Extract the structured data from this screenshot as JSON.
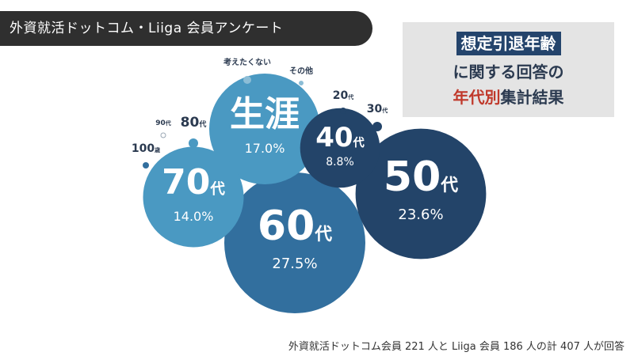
{
  "header": {
    "title": "外資就活ドットコム・Liiga 会員アンケート"
  },
  "heading": {
    "line1": "想定引退年齢",
    "line2": "に関する回答の",
    "line3_accent": "年代別",
    "line3_rest": "集計結果"
  },
  "footnote": "外資就活ドットコム会員 221 人と Liiga 会員 186 人の計 407 人が回答",
  "colors": {
    "dark": "#234469",
    "mid": "#326f9e",
    "light": "#4a99c2",
    "accent": "#c0392b"
  },
  "chart_data": {
    "type": "bubble",
    "unit": "%",
    "items": [
      {
        "label": "60",
        "suffix": "代",
        "value": 27.5,
        "value_label": "27.5%"
      },
      {
        "label": "50",
        "suffix": "代",
        "value": 23.6,
        "value_label": "23.6%"
      },
      {
        "label": "生涯",
        "suffix": "",
        "value": 17.0,
        "value_label": "17.0%"
      },
      {
        "label": "70",
        "suffix": "代",
        "value": 14.0,
        "value_label": "14.0%"
      },
      {
        "label": "40",
        "suffix": "代",
        "value": 8.8,
        "value_label": "8.8%"
      },
      {
        "label": "80",
        "suffix": "代",
        "value": null,
        "value_label": ""
      },
      {
        "label": "30",
        "suffix": "代",
        "value": null,
        "value_label": ""
      },
      {
        "label": "20",
        "suffix": "代",
        "value": null,
        "value_label": ""
      },
      {
        "label": "100",
        "suffix": "歳",
        "value": null,
        "value_label": ""
      },
      {
        "label": "考えたくない",
        "suffix": "",
        "value": null,
        "value_label": ""
      },
      {
        "label": "その他",
        "suffix": "",
        "value": null,
        "value_label": ""
      },
      {
        "label": "90",
        "suffix": "代",
        "value": null,
        "value_label": ""
      }
    ]
  }
}
